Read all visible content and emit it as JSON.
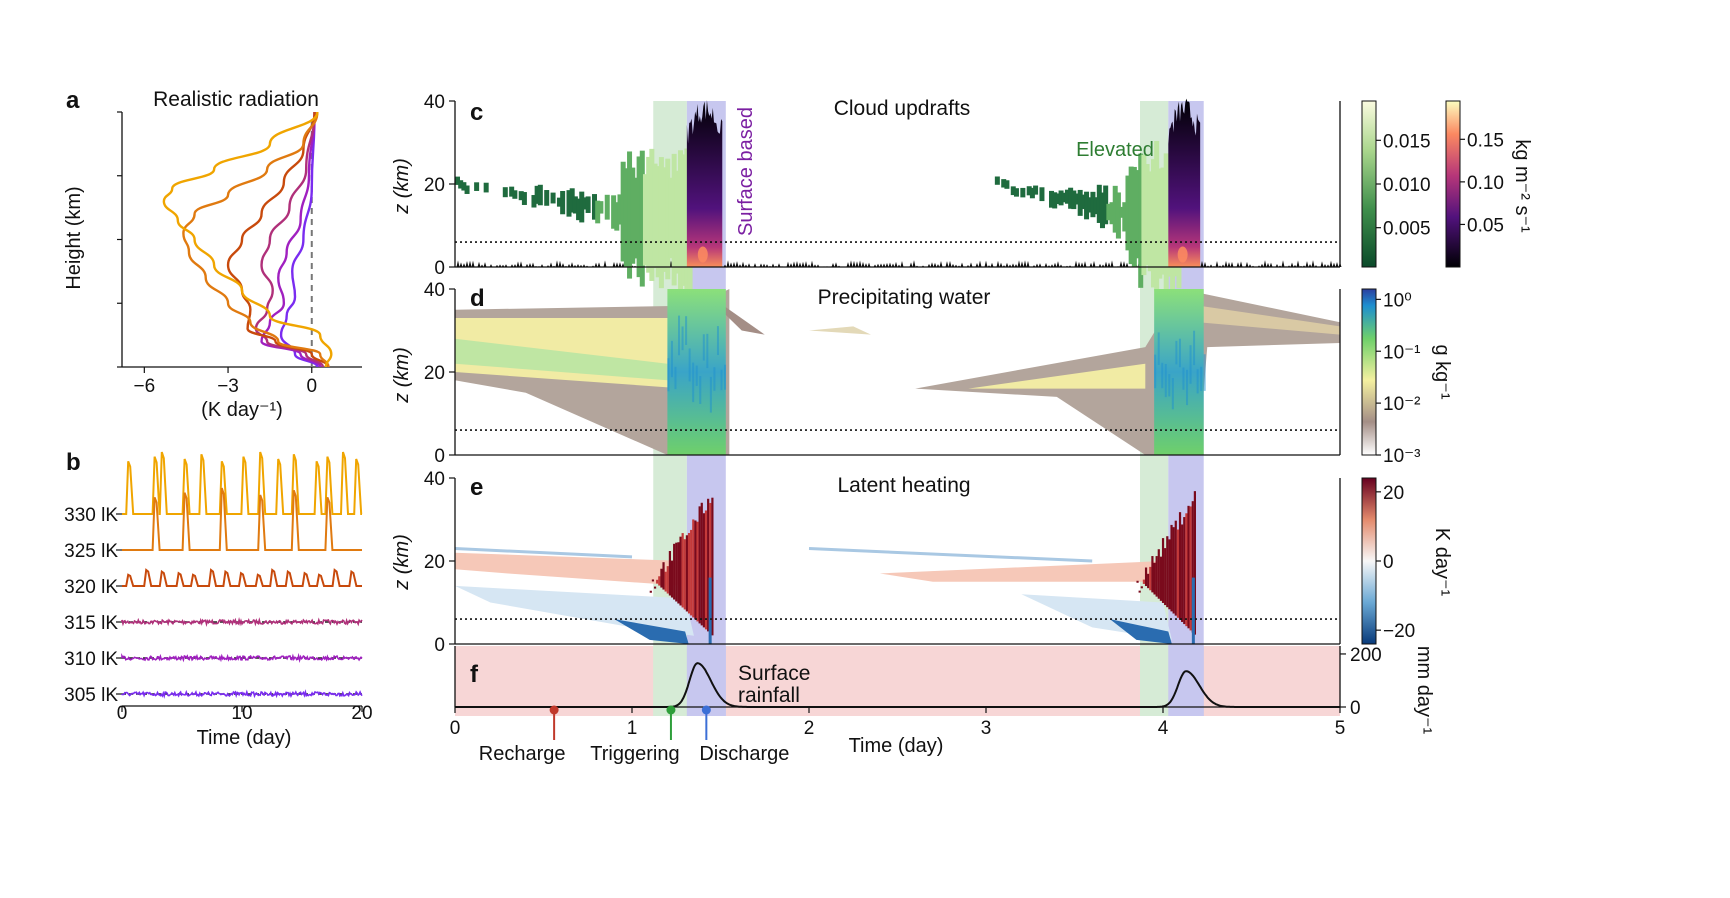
{
  "colors": {
    "text": "#111111",
    "axis": "#111111",
    "triggering_band": "#d6ebd6",
    "discharge_band": "#c7c7ef",
    "rainfall_background": "#f7d6d6",
    "recharge_marker": "#c0392b",
    "triggering_marker": "#2e9e3a",
    "discharge_marker": "#3c6fd6",
    "elevated_label": "#2e7d32",
    "surface_label": "#7b1fa2"
  },
  "chart_data": [
    {
      "id": "a",
      "panel_letter": "a",
      "type": "line",
      "title": "Realistic radiation",
      "xlabel": "(K day⁻¹)",
      "ylabel": "Height (km)",
      "xlim": [
        -6.8,
        1.8
      ],
      "ylim": [
        0,
        40
      ],
      "xticks": [
        "−6",
        "−3",
        "0"
      ],
      "xtick_values": [
        -6,
        -3,
        0
      ],
      "zero_line": "dashed gray",
      "series": [
        {
          "name": "330 K",
          "color": "#f0a500",
          "x": [
            0.5,
            0.7,
            0.3,
            -1.5,
            -2.5,
            -3.5,
            -4.2,
            -4.8,
            -5.3,
            -5.0,
            -3.5,
            -1.5,
            0.2
          ],
          "y": [
            0,
            2,
            5,
            8,
            12,
            16,
            20,
            23,
            26,
            28,
            31,
            35,
            40
          ]
        },
        {
          "name": "325 K",
          "color": "#e07a10",
          "x": [
            0.6,
            0.3,
            -1.2,
            -2.2,
            -3.0,
            -3.8,
            -4.4,
            -4.6,
            -4.2,
            -3.0,
            -1.6,
            -0.3,
            0.2
          ],
          "y": [
            0,
            2,
            4,
            7,
            10,
            14,
            18,
            21,
            24,
            27,
            31,
            35,
            40
          ]
        },
        {
          "name": "320 K",
          "color": "#c84a0c",
          "x": [
            0.6,
            0.0,
            -1.3,
            -2.3,
            -2.2,
            -2.5,
            -3.0,
            -2.5,
            -1.8,
            -1.0,
            -0.3,
            0.1
          ],
          "y": [
            0,
            2,
            4,
            6,
            9,
            12,
            16,
            20,
            24,
            29,
            34,
            40
          ]
        },
        {
          "name": "315 K",
          "color": "#b0307a",
          "x": [
            0.4,
            -0.2,
            -1.6,
            -2.0,
            -1.6,
            -1.4,
            -1.8,
            -1.5,
            -0.8,
            -0.2,
            0.1
          ],
          "y": [
            0,
            2,
            4,
            6,
            9,
            12,
            16,
            20,
            25,
            31,
            40
          ]
        },
        {
          "name": "310 K",
          "color": "#a020c0",
          "x": [
            0.3,
            -0.4,
            -1.8,
            -1.5,
            -1.0,
            -1.2,
            -0.9,
            -0.4,
            -0.1,
            0.1
          ],
          "y": [
            0,
            2,
            4,
            7,
            10,
            14,
            18,
            23,
            30,
            40
          ]
        },
        {
          "name": "305 K",
          "color": "#7a2cf0",
          "x": [
            0.2,
            -0.6,
            -1.1,
            -0.9,
            -0.6,
            -0.7,
            -0.3,
            0.0,
            0.1
          ],
          "y": [
            0,
            2,
            5,
            8,
            11,
            15,
            20,
            28,
            40
          ]
        }
      ]
    },
    {
      "id": "b",
      "panel_letter": "b",
      "type": "line",
      "xlabel": "Time (day)",
      "xlim": [
        0,
        20
      ],
      "xticks": [
        "0",
        "10",
        "20"
      ],
      "xtick_values": [
        0,
        10,
        20
      ],
      "series": [
        {
          "name": "330 K",
          "label": "330 lK",
          "color": "#f0a500",
          "pattern": "tall_spikes",
          "peak_days": [
            0.6,
            2.8,
            3.4,
            5.3,
            6.7,
            8.4,
            10.2,
            11.6,
            13.1,
            14.4,
            16.3,
            17.2,
            18.5,
            19.6
          ]
        },
        {
          "name": "325 K",
          "label": "325 lK",
          "color": "#e07a10",
          "pattern": "tall_spikes",
          "peak_days": [
            2.8,
            5.3,
            8.4,
            11.6,
            14.4,
            17.2
          ]
        },
        {
          "name": "320 K",
          "label": "320 lK",
          "color": "#c84a0c",
          "pattern": "small_spikes",
          "peak_days": [
            0.6,
            2.1,
            3.4,
            4.8,
            6.0,
            7.5,
            8.7,
            10.0,
            11.4,
            12.6,
            13.9,
            15.3,
            16.5,
            17.8,
            19.2
          ]
        },
        {
          "name": "315 K",
          "label": "315 lK",
          "color": "#b0307a",
          "pattern": "noise"
        },
        {
          "name": "310 K",
          "label": "310 lK",
          "color": "#a020c0",
          "pattern": "noise"
        },
        {
          "name": "305 K",
          "label": "305 lK",
          "color": "#7a2cf0",
          "pattern": "noise"
        }
      ]
    },
    {
      "id": "c",
      "panel_letter": "c",
      "type": "heatmap",
      "title": "Cloud updrafts",
      "ylabel": "z (km)",
      "xlim": [
        0,
        5
      ],
      "ylim": [
        0,
        40
      ],
      "yticks": [
        "0",
        "20",
        "40"
      ],
      "ytick_values": [
        0,
        20,
        40
      ],
      "annotations": {
        "elevated": "Elevated",
        "surface_based": "Surface based"
      },
      "colorbars": [
        {
          "label": "",
          "ticks": [
            "0.005",
            "0.010",
            "0.015"
          ],
          "values": [
            0.005,
            0.01,
            0.015
          ],
          "range": [
            0.0005,
            0.0195
          ],
          "cmap": "greens"
        },
        {
          "label": "kg m⁻² s⁻¹",
          "ticks": [
            "0.05",
            "0.10",
            "0.15"
          ],
          "values": [
            0.05,
            0.1,
            0.15
          ],
          "range": [
            0.0,
            0.195
          ],
          "cmap": "magma"
        }
      ]
    },
    {
      "id": "d",
      "panel_letter": "d",
      "type": "heatmap",
      "title": "Precipitating water",
      "ylabel": "z (km)",
      "xlim": [
        0,
        5
      ],
      "ylim": [
        0,
        40
      ],
      "yticks": [
        "0",
        "20",
        "40"
      ],
      "ytick_values": [
        0,
        20,
        40
      ],
      "colorbar": {
        "label": "g kg⁻¹",
        "ticks": [
          "10⁰",
          "10⁻¹",
          "10⁻²",
          "10⁻³"
        ],
        "log10_values": [
          0,
          -1,
          -2,
          -3
        ],
        "range_log10": [
          -3,
          0.2
        ],
        "cmap": "terrain"
      }
    },
    {
      "id": "e",
      "panel_letter": "e",
      "type": "heatmap",
      "title": "Latent heating",
      "ylabel": "z (km)",
      "xlim": [
        0,
        5
      ],
      "ylim": [
        0,
        40
      ],
      "yticks": [
        "0",
        "20",
        "40"
      ],
      "ytick_values": [
        0,
        20,
        40
      ],
      "colorbar": {
        "label": "K day⁻¹",
        "ticks": [
          "20",
          "0",
          "−20"
        ],
        "values": [
          20,
          0,
          -20
        ],
        "range": [
          -24,
          24
        ],
        "cmap": "RdBu_r"
      }
    },
    {
      "id": "f",
      "panel_letter": "f",
      "type": "line",
      "annotation": [
        "Surface",
        "rainfall"
      ],
      "xlabel": "Time (day)",
      "xlim": [
        0,
        5
      ],
      "xticks": [
        "0",
        "1",
        "2",
        "3",
        "4",
        "5"
      ],
      "xtick_values": [
        0,
        1,
        2,
        3,
        4,
        5
      ],
      "ylim": [
        0,
        230
      ],
      "yticks": [
        "0",
        "200"
      ],
      "ytick_values": [
        0,
        200
      ],
      "ylabel_right": "mm day⁻¹",
      "rainfall_peaks": [
        {
          "day": 1.37,
          "peak": 165
        },
        {
          "day": 4.13,
          "peak": 135
        }
      ],
      "phases": [
        {
          "name": "Recharge",
          "day": 0.56,
          "color": "#c0392b"
        },
        {
          "name": "Triggering",
          "day": 1.22,
          "color": "#2e9e3a"
        },
        {
          "name": "Discharge",
          "day": 1.42,
          "color": "#3c6fd6"
        }
      ]
    }
  ],
  "event_bands": {
    "triggering": [
      [
        1.12,
        1.31
      ],
      [
        3.87,
        4.03
      ]
    ],
    "discharge": [
      [
        1.31,
        1.53
      ],
      [
        4.03,
        4.23
      ]
    ]
  },
  "reference_line_km": 6
}
